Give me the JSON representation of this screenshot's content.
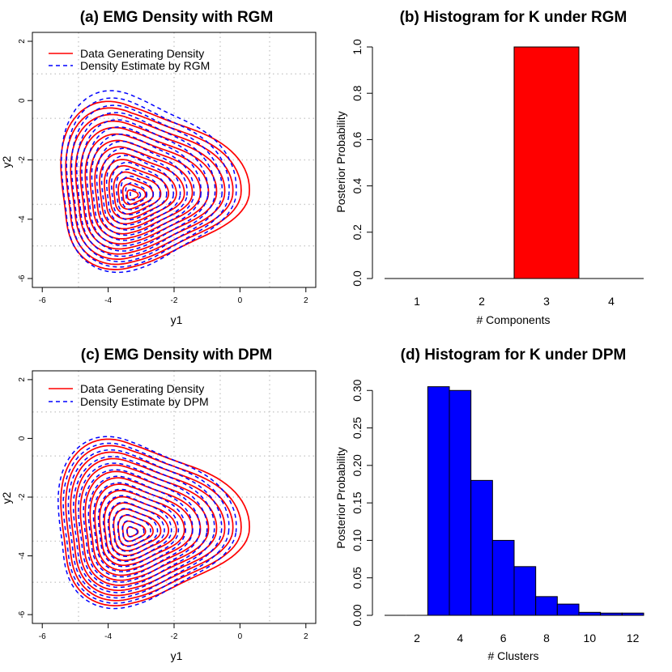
{
  "chart_data": [
    {
      "type": "contour",
      "title": "(a) EMG Density with RGM",
      "xlabel": "y1",
      "ylabel": "y2",
      "xlim": [
        -6.3,
        2.3
      ],
      "ylim": [
        -6.3,
        2.3
      ],
      "xticks": [
        "-6",
        "-4",
        "-2",
        "0",
        "2"
      ],
      "yticks": [
        "-6",
        "-4",
        "-2",
        "0",
        "2"
      ],
      "grid_x": [
        -4.9,
        -2.0,
        -0.6,
        0.9
      ],
      "grid_y": [
        0.9,
        -0.6,
        -2.0,
        -3.5,
        -4.9
      ],
      "grid": "dotted",
      "legend_position": "top-left",
      "series": [
        {
          "name": "Data Generating Density",
          "color": "#ff0000",
          "dash": "solid",
          "center": [
            -3.3,
            -3.2
          ],
          "extent": [
            -5.9,
            0.3,
            -5.8,
            0.3
          ]
        },
        {
          "name": "Density Estimate by RGM",
          "color": "#0000ff",
          "dash": "dashed",
          "center": [
            -3.2,
            -3.2
          ],
          "extent": [
            -5.9,
            -0.1,
            -5.9,
            0.7
          ]
        }
      ]
    },
    {
      "type": "bar",
      "title": "(b) Histogram for K under RGM",
      "xlabel": "# Components",
      "ylabel": "Posterior Probability",
      "xlim": [
        0.5,
        4.5
      ],
      "ylim": [
        0,
        1.0
      ],
      "xticks": [
        "1",
        "2",
        "3",
        "4"
      ],
      "yticks": [
        "0.0",
        "0.2",
        "0.4",
        "0.6",
        "0.8",
        "1.0"
      ],
      "bar_color": "#ff0000",
      "categories": [
        1,
        2,
        3,
        4
      ],
      "values": [
        0,
        0,
        1.0,
        0
      ]
    },
    {
      "type": "contour",
      "title": "(c) EMG Density with DPM",
      "xlabel": "y1",
      "ylabel": "y2",
      "xlim": [
        -6.3,
        2.3
      ],
      "ylim": [
        -6.3,
        2.3
      ],
      "xticks": [
        "-6",
        "-4",
        "-2",
        "0",
        "2"
      ],
      "yticks": [
        "-6",
        "-4",
        "-2",
        "0",
        "2"
      ],
      "grid_x": [
        -4.9,
        -2.0,
        -0.6,
        0.9
      ],
      "grid_y": [
        0.9,
        -0.6,
        -2.0,
        -3.5,
        -4.9
      ],
      "grid": "dotted",
      "legend_position": "top-left",
      "series": [
        {
          "name": "Data Generating Density",
          "color": "#ff0000",
          "dash": "solid",
          "center": [
            -3.3,
            -3.2
          ],
          "extent": [
            -5.9,
            0.3,
            -5.8,
            0.3
          ]
        },
        {
          "name": "Density Estimate by DPM",
          "color": "#0000ff",
          "dash": "dashed",
          "center": [
            -3.3,
            -3.2
          ],
          "extent": [
            -6.0,
            -0.1,
            -5.9,
            0.4
          ]
        }
      ]
    },
    {
      "type": "bar",
      "title": "(d) Histogram for K under DPM",
      "xlabel": "# Clusters",
      "ylabel": "Posterior Probability",
      "xlim": [
        0.5,
        12.5
      ],
      "ylim": [
        0,
        0.31
      ],
      "xticks": [
        "2",
        "4",
        "6",
        "8",
        "10",
        "12"
      ],
      "yticks": [
        "0.00",
        "0.05",
        "0.10",
        "0.15",
        "0.20",
        "0.25",
        "0.30"
      ],
      "bar_color": "#0000ff",
      "categories": [
        1,
        2,
        3,
        4,
        5,
        6,
        7,
        8,
        9,
        10,
        11,
        12
      ],
      "values": [
        0,
        0,
        0.305,
        0.3,
        0.18,
        0.1,
        0.065,
        0.025,
        0.015,
        0.004,
        0.003,
        0.003
      ]
    }
  ]
}
